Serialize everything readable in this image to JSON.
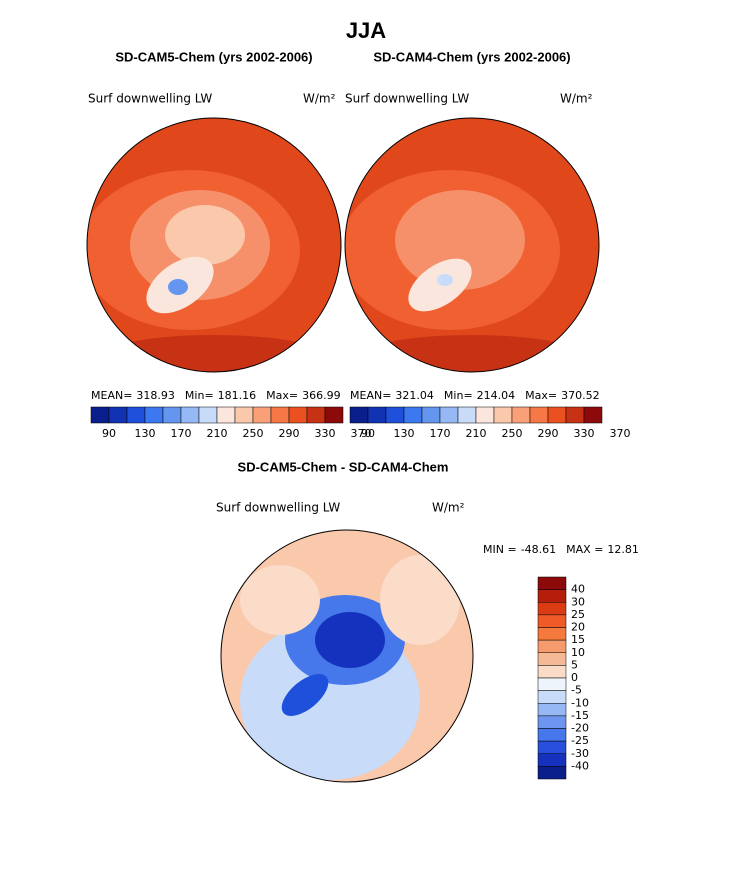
{
  "title": "JJA",
  "panels": [
    {
      "title": "SD-CAM5-Chem (yrs 2002-2006)",
      "variable": "Surf downwelling LW",
      "units": "W/m²",
      "stats": [
        {
          "label": "MEAN=",
          "value": 318.93
        },
        {
          "label": "Min=",
          "value": 181.16
        },
        {
          "label": "Max=",
          "value": 366.99
        }
      ]
    },
    {
      "title": "SD-CAM4-Chem (yrs 2002-2006)",
      "variable": "Surf downwelling LW",
      "units": "W/m²",
      "stats": [
        {
          "label": "MEAN=",
          "value": 321.04
        },
        {
          "label": "Min=",
          "value": 214.04
        },
        {
          "label": "Max=",
          "value": 370.52
        }
      ]
    },
    {
      "title": "SD-CAM5-Chem - SD-CAM4-Chem",
      "variable": "Surf downwelling LW",
      "units": "W/m²",
      "stats": [
        {
          "label": "MIN =",
          "value": -48.61
        },
        {
          "label": "MAX =",
          "value": 12.81
        }
      ]
    }
  ],
  "colorbar_abs": {
    "colors": [
      "#0a1e8c",
      "#1232b4",
      "#1e50dc",
      "#3c78f0",
      "#6496f0",
      "#96b9f5",
      "#c8dcfa",
      "#fae6dc",
      "#fac8aa",
      "#faa078",
      "#f57846",
      "#eb5020",
      "#c83214",
      "#8c0a0a"
    ],
    "ticks": [
      90,
      130,
      170,
      210,
      250,
      290,
      330,
      370
    ]
  },
  "colorbar_diff": {
    "colors": [
      "#8c0a0a",
      "#b41e0a",
      "#dc3c14",
      "#f05a28",
      "#f5783c",
      "#f59b6e",
      "#f5b996",
      "#fadcc8",
      "#eef4fc",
      "#c8dcfa",
      "#96b9f5",
      "#6e96f0",
      "#4678eb",
      "#2850dc",
      "#1432be",
      "#0a1e8c"
    ],
    "ticks": [
      40,
      30,
      25,
      20,
      15,
      10,
      5,
      0,
      -5,
      -10,
      -15,
      -20,
      -25,
      -30,
      -40
    ]
  }
}
